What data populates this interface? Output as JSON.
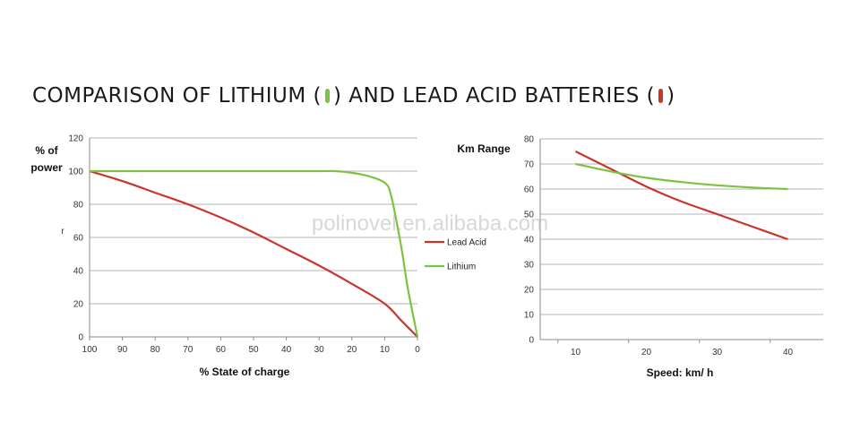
{
  "title": {
    "part1": "COMPARISON OF LITHIUM (",
    "part2": ") AND LEAD ACID BATTERIES (",
    "part3": ")",
    "lithium_color": "#7dc243",
    "lead_color": "#c8352b"
  },
  "watermark": "polinovel.en.alibaba.com",
  "chart_data": [
    {
      "type": "line",
      "ylabel": "% of power",
      "ylabel_extra": "r",
      "xlabel": "% State of charge",
      "x_ticks": [
        "100",
        "90",
        "80",
        "70",
        "60",
        "50",
        "40",
        "30",
        "20",
        "10",
        "0"
      ],
      "y_ticks": [
        "0",
        "20",
        "40",
        "60",
        "80",
        "100",
        "120"
      ],
      "xlim": [
        100,
        0
      ],
      "ylim": [
        0,
        120
      ],
      "legend_position": "right",
      "series": [
        {
          "name": "Lead Acid",
          "color": "#c8352b",
          "x": [
            100,
            90,
            80,
            70,
            60,
            50,
            40,
            30,
            20,
            10,
            5,
            0
          ],
          "y": [
            100,
            94,
            87,
            80,
            72,
            63,
            53,
            43,
            32,
            20,
            10,
            0
          ]
        },
        {
          "name": "Lithium",
          "color": "#7dc243",
          "x": [
            100,
            90,
            80,
            70,
            60,
            50,
            40,
            30,
            25,
            20,
            15,
            10,
            8,
            5,
            3,
            0
          ],
          "y": [
            100,
            100,
            100,
            100,
            100,
            100,
            100,
            100,
            100,
            99,
            97,
            93,
            85,
            55,
            30,
            0
          ]
        }
      ]
    },
    {
      "type": "line",
      "ylabel": "Km Range",
      "xlabel": "Speed: km/ h",
      "x_ticks": [
        "10",
        "20",
        "30",
        "40"
      ],
      "y_ticks": [
        "0",
        "10",
        "20",
        "30",
        "40",
        "50",
        "60",
        "70",
        "80"
      ],
      "xlim": [
        5,
        45
      ],
      "ylim": [
        0,
        80
      ],
      "series": [
        {
          "color": "#c8352b",
          "x": [
            10,
            15,
            20,
            25,
            30,
            35,
            40
          ],
          "y": [
            75,
            68,
            61,
            55,
            50,
            45,
            40
          ]
        },
        {
          "color": "#7dc243",
          "x": [
            10,
            15,
            20,
            25,
            30,
            35,
            40
          ],
          "y": [
            70,
            67,
            64.5,
            62.8,
            61.5,
            60.6,
            60
          ]
        }
      ]
    }
  ]
}
